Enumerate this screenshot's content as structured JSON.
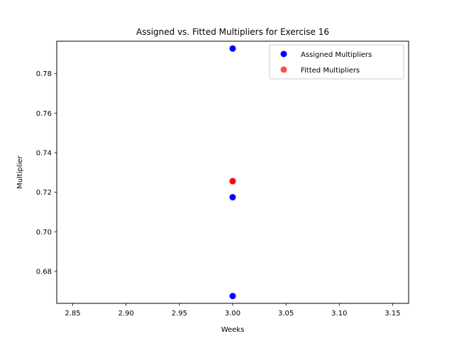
{
  "chart_data": {
    "type": "scatter",
    "title": "Assigned vs. Fitted Multipliers for Exercise 16",
    "xlabel": "Weeks",
    "ylabel": "Multiplier",
    "xlim": [
      2.835,
      3.165
    ],
    "ylim": [
      0.6638,
      0.7964
    ],
    "xticks": [
      2.85,
      2.9,
      2.95,
      3.0,
      3.05,
      3.1,
      3.15
    ],
    "xtick_labels": [
      "2.85",
      "2.90",
      "2.95",
      "3.00",
      "3.05",
      "3.10",
      "3.15"
    ],
    "yticks": [
      0.68,
      0.7,
      0.72,
      0.74,
      0.76,
      0.78
    ],
    "ytick_labels": [
      "0.68",
      "0.70",
      "0.72",
      "0.74",
      "0.76",
      "0.78"
    ],
    "grid": false,
    "legend_position": "top-right",
    "series": [
      {
        "name": "Assigned Multipliers",
        "color": "#0000ff",
        "alpha": 1.0,
        "points": [
          {
            "x": 3.0,
            "y": 0.7927
          },
          {
            "x": 3.0,
            "y": 0.7175
          },
          {
            "x": 3.0,
            "y": 0.6675
          }
        ]
      },
      {
        "name": "Fitted Multipliers",
        "color": "#ff0000",
        "alpha": 0.7,
        "points": [
          {
            "x": 3.0,
            "y": 0.7256
          },
          {
            "x": 3.0,
            "y": 0.7256
          },
          {
            "x": 3.0,
            "y": 0.7256
          }
        ]
      }
    ]
  }
}
